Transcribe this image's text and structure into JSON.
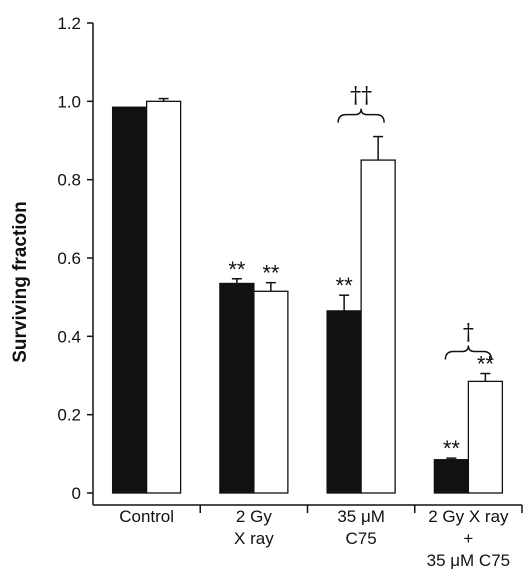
{
  "chart_data": {
    "type": "bar",
    "ylabel": "Surviving fraction",
    "ylim": [
      0,
      1.2
    ],
    "yticks": [
      "0",
      "0.2",
      "0.4",
      "0.6",
      "0.8",
      "1.0",
      "1.2"
    ],
    "categories": [
      [
        "Control"
      ],
      [
        "2 Gy",
        "X ray"
      ],
      [
        "35 μM",
        "C75"
      ],
      [
        "2 Gy X ray",
        "+",
        "35 μM C75"
      ]
    ],
    "series": [
      {
        "fill": "#111111",
        "values": [
          0.985,
          0.535,
          0.465,
          0.085
        ],
        "errors": [
          0,
          0.012,
          0.04,
          0.004
        ]
      },
      {
        "fill": "#ffffff",
        "values": [
          1.0,
          0.515,
          0.85,
          0.285
        ],
        "errors": [
          0.007,
          0.022,
          0.06,
          0.02
        ]
      }
    ],
    "annotations": [
      {
        "text": "**",
        "category": 1,
        "series": 0
      },
      {
        "text": "**",
        "category": 1,
        "series": 1
      },
      {
        "text": "**",
        "category": 2,
        "series": 0
      },
      {
        "text": "**",
        "category": 3,
        "series": 0
      },
      {
        "text": "**",
        "category": 3,
        "series": 1
      }
    ],
    "brackets": [
      {
        "text": "††",
        "category": 2
      },
      {
        "text": "†",
        "category": 3
      }
    ]
  }
}
